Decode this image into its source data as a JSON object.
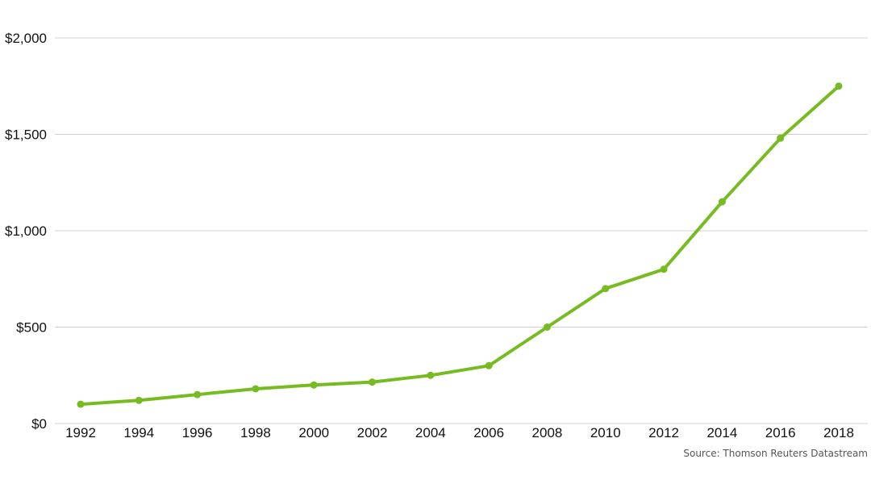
{
  "chart_data": {
    "type": "line",
    "title": "",
    "xlabel": "",
    "ylabel": "",
    "x": [
      "1992",
      "1994",
      "1996",
      "1998",
      "2000",
      "2002",
      "2004",
      "2006",
      "2008",
      "2010",
      "2012",
      "2014",
      "2016",
      "2018"
    ],
    "series": [
      {
        "values": [
          100,
          120,
          150,
          180,
          200,
          215,
          250,
          300,
          500,
          700,
          800,
          1150,
          1480,
          1750
        ]
      }
    ],
    "y_ticks": [
      0,
      500,
      1000,
      1500,
      2000
    ],
    "y_tick_labels": [
      "$0",
      "$500",
      "$1,000",
      "$1,500",
      "$2,000"
    ],
    "ylim": [
      0,
      2000
    ],
    "grid": true,
    "legend": "none",
    "colors": {
      "line": "#76bc21",
      "grid": "#d0d0d0",
      "text": "#111111"
    }
  },
  "source": "Source: Thomson Reuters Datastream"
}
